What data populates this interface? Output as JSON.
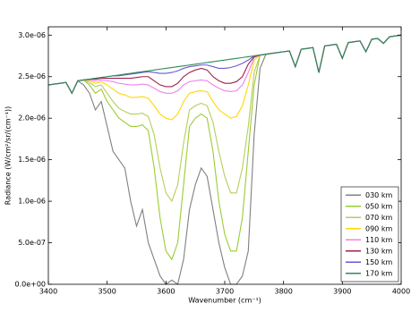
{
  "chart_data": {
    "type": "line",
    "x_label": "Wavenumber (cm⁻¹)",
    "y_label": "Radiance (W/cm²/sr/(cm⁻¹))",
    "x": [
      3400,
      3410,
      3420,
      3430,
      3440,
      3450,
      3460,
      3470,
      3480,
      3490,
      3500,
      3510,
      3520,
      3530,
      3540,
      3550,
      3560,
      3570,
      3580,
      3590,
      3600,
      3610,
      3620,
      3630,
      3640,
      3650,
      3660,
      3670,
      3680,
      3690,
      3700,
      3710,
      3720,
      3730,
      3740,
      3750,
      3760,
      3770,
      3780,
      3790,
      3800,
      3810,
      3820,
      3830,
      3840,
      3850,
      3860,
      3870,
      3880,
      3890,
      3900,
      3910,
      3920,
      3930,
      3940,
      3950,
      3960,
      3970,
      3980,
      3990,
      4000
    ],
    "xlim": [
      3400,
      4000
    ],
    "xticks": [
      3400,
      3500,
      3600,
      3700,
      3800,
      3900,
      4000
    ],
    "ylim": [
      0,
      3.1e-06
    ],
    "yticks": [
      {
        "value": 0,
        "label": "0.0e+00"
      },
      {
        "value": 5e-07,
        "label": "5.0e-07"
      },
      {
        "value": 1e-06,
        "label": "1.0e-06"
      },
      {
        "value": 1.5e-06,
        "label": "1.5e-06"
      },
      {
        "value": 2e-06,
        "label": "2.0e-06"
      },
      {
        "value": 2.5e-06,
        "label": "2.5e-06"
      },
      {
        "value": 3e-06,
        "label": "3.0e-06"
      }
    ],
    "legend": "lower right",
    "series": [
      {
        "name": "030 km",
        "color": "#808080",
        "values": [
          2.4e-06,
          2.41e-06,
          2.42e-06,
          2.43e-06,
          2.3e-06,
          2.45e-06,
          2.4e-06,
          2.3e-06,
          2.1e-06,
          2.2e-06,
          1.9e-06,
          1.6e-06,
          1.5e-06,
          1.4e-06,
          1e-06,
          7e-07,
          9e-07,
          5e-07,
          3e-07,
          1e-07,
          0,
          5e-08,
          0,
          3e-07,
          9e-07,
          1.2e-06,
          1.4e-06,
          1.3e-06,
          9e-07,
          5e-07,
          2e-07,
          0,
          0,
          1e-07,
          4e-07,
          1.8e-06,
          2.6e-06,
          2.77e-06,
          2.78e-06,
          2.79e-06,
          2.8e-06,
          2.81e-06,
          2.62e-06,
          2.83e-06,
          2.84e-06,
          2.85e-06,
          2.55e-06,
          2.87e-06,
          2.88e-06,
          2.89e-06,
          2.72e-06,
          2.91e-06,
          2.92e-06,
          2.93e-06,
          2.8e-06,
          2.95e-06,
          2.96e-06,
          2.9e-06,
          2.98e-06,
          2.99e-06,
          3e-06
        ]
      },
      {
        "name": "050 km",
        "color": "#9acd32",
        "values": [
          2.4e-06,
          2.41e-06,
          2.42e-06,
          2.43e-06,
          2.3e-06,
          2.45e-06,
          2.46e-06,
          2.4e-06,
          2.3e-06,
          2.35e-06,
          2.2e-06,
          2.1e-06,
          2e-06,
          1.95e-06,
          1.9e-06,
          1.9e-06,
          1.92e-06,
          1.85e-06,
          1.4e-06,
          8e-07,
          4e-07,
          3e-07,
          5e-07,
          1.2e-06,
          1.9e-06,
          2e-06,
          2.05e-06,
          2e-06,
          1.6e-06,
          1e-06,
          6e-07,
          4e-07,
          4e-07,
          8e-07,
          1.6e-06,
          2.4e-06,
          2.76e-06,
          2.77e-06,
          2.78e-06,
          2.79e-06,
          2.8e-06,
          2.81e-06,
          2.62e-06,
          2.83e-06,
          2.84e-06,
          2.85e-06,
          2.55e-06,
          2.87e-06,
          2.88e-06,
          2.89e-06,
          2.72e-06,
          2.91e-06,
          2.92e-06,
          2.93e-06,
          2.8e-06,
          2.95e-06,
          2.96e-06,
          2.9e-06,
          2.98e-06,
          2.99e-06,
          3e-06
        ]
      },
      {
        "name": "070 km",
        "color": "#b5cf5a",
        "values": [
          2.4e-06,
          2.41e-06,
          2.42e-06,
          2.43e-06,
          2.3e-06,
          2.45e-06,
          2.46e-06,
          2.43e-06,
          2.38e-06,
          2.4e-06,
          2.3e-06,
          2.2e-06,
          2.12e-06,
          2.08e-06,
          2.05e-06,
          2.05e-06,
          2.06e-06,
          2.02e-06,
          1.8e-06,
          1.4e-06,
          1.1e-06,
          1e-06,
          1.2e-06,
          1.7e-06,
          2.1e-06,
          2.15e-06,
          2.18e-06,
          2.15e-06,
          1.95e-06,
          1.6e-06,
          1.3e-06,
          1.1e-06,
          1.1e-06,
          1.4e-06,
          1.9e-06,
          2.55e-06,
          2.76e-06,
          2.77e-06,
          2.78e-06,
          2.79e-06,
          2.8e-06,
          2.81e-06,
          2.62e-06,
          2.83e-06,
          2.84e-06,
          2.85e-06,
          2.55e-06,
          2.87e-06,
          2.88e-06,
          2.89e-06,
          2.72e-06,
          2.91e-06,
          2.92e-06,
          2.93e-06,
          2.8e-06,
          2.95e-06,
          2.96e-06,
          2.9e-06,
          2.98e-06,
          2.99e-06,
          3e-06
        ]
      },
      {
        "name": "090 km",
        "color": "#ffd700",
        "values": [
          2.4e-06,
          2.41e-06,
          2.42e-06,
          2.43e-06,
          2.3e-06,
          2.45e-06,
          2.46e-06,
          2.45e-06,
          2.42e-06,
          2.44e-06,
          2.4e-06,
          2.35e-06,
          2.3e-06,
          2.28e-06,
          2.25e-06,
          2.25e-06,
          2.26e-06,
          2.24e-06,
          2.15e-06,
          2.05e-06,
          2e-06,
          1.98e-06,
          2.05e-06,
          2.2e-06,
          2.3e-06,
          2.32e-06,
          2.33e-06,
          2.32e-06,
          2.2e-06,
          2.1e-06,
          2.05e-06,
          2e-06,
          2.02e-06,
          2.15e-06,
          2.4e-06,
          2.7e-06,
          2.76e-06,
          2.77e-06,
          2.78e-06,
          2.79e-06,
          2.8e-06,
          2.81e-06,
          2.62e-06,
          2.83e-06,
          2.84e-06,
          2.85e-06,
          2.55e-06,
          2.87e-06,
          2.88e-06,
          2.89e-06,
          2.72e-06,
          2.91e-06,
          2.92e-06,
          2.93e-06,
          2.8e-06,
          2.95e-06,
          2.96e-06,
          2.9e-06,
          2.98e-06,
          2.99e-06,
          3e-06
        ]
      },
      {
        "name": "110 km",
        "color": "#ee82ee",
        "values": [
          2.4e-06,
          2.41e-06,
          2.42e-06,
          2.43e-06,
          2.3e-06,
          2.45e-06,
          2.46e-06,
          2.46e-06,
          2.45e-06,
          2.46e-06,
          2.45e-06,
          2.44e-06,
          2.42e-06,
          2.41e-06,
          2.4e-06,
          2.4e-06,
          2.41e-06,
          2.4e-06,
          2.36e-06,
          2.32e-06,
          2.3e-06,
          2.3e-06,
          2.33e-06,
          2.4e-06,
          2.44e-06,
          2.45e-06,
          2.46e-06,
          2.45e-06,
          2.4e-06,
          2.36e-06,
          2.33e-06,
          2.32e-06,
          2.33e-06,
          2.4e-06,
          2.55e-06,
          2.73e-06,
          2.76e-06,
          2.77e-06,
          2.78e-06,
          2.79e-06,
          2.8e-06,
          2.81e-06,
          2.62e-06,
          2.83e-06,
          2.84e-06,
          2.85e-06,
          2.55e-06,
          2.87e-06,
          2.88e-06,
          2.89e-06,
          2.72e-06,
          2.91e-06,
          2.92e-06,
          2.93e-06,
          2.8e-06,
          2.95e-06,
          2.96e-06,
          2.9e-06,
          2.98e-06,
          2.99e-06,
          3e-06
        ]
      },
      {
        "name": "130 km",
        "color": "#a0204a",
        "values": [
          2.4e-06,
          2.41e-06,
          2.42e-06,
          2.43e-06,
          2.3e-06,
          2.45e-06,
          2.46e-06,
          2.47e-06,
          2.47e-06,
          2.48e-06,
          2.48e-06,
          2.48e-06,
          2.48e-06,
          2.48e-06,
          2.48e-06,
          2.49e-06,
          2.5e-06,
          2.5e-06,
          2.45e-06,
          2.4e-06,
          2.38e-06,
          2.38e-06,
          2.42e-06,
          2.5e-06,
          2.55e-06,
          2.58e-06,
          2.6e-06,
          2.58e-06,
          2.5e-06,
          2.45e-06,
          2.42e-06,
          2.42e-06,
          2.44e-06,
          2.5e-06,
          2.65e-06,
          2.74e-06,
          2.76e-06,
          2.77e-06,
          2.78e-06,
          2.79e-06,
          2.8e-06,
          2.81e-06,
          2.62e-06,
          2.83e-06,
          2.84e-06,
          2.85e-06,
          2.55e-06,
          2.87e-06,
          2.88e-06,
          2.89e-06,
          2.72e-06,
          2.91e-06,
          2.92e-06,
          2.93e-06,
          2.8e-06,
          2.95e-06,
          2.96e-06,
          2.9e-06,
          2.98e-06,
          2.99e-06,
          3e-06
        ]
      },
      {
        "name": "150 km",
        "color": "#6a5acd",
        "values": [
          2.4e-06,
          2.41e-06,
          2.42e-06,
          2.43e-06,
          2.3e-06,
          2.45e-06,
          2.46e-06,
          2.47e-06,
          2.48e-06,
          2.49e-06,
          2.5e-06,
          2.51e-06,
          2.51e-06,
          2.52e-06,
          2.53e-06,
          2.54e-06,
          2.55e-06,
          2.56e-06,
          2.55e-06,
          2.54e-06,
          2.54e-06,
          2.55e-06,
          2.57e-06,
          2.6e-06,
          2.62e-06,
          2.63e-06,
          2.64e-06,
          2.64e-06,
          2.62e-06,
          2.6e-06,
          2.6e-06,
          2.61e-06,
          2.63e-06,
          2.66e-06,
          2.7e-06,
          2.75e-06,
          2.76e-06,
          2.77e-06,
          2.78e-06,
          2.79e-06,
          2.8e-06,
          2.81e-06,
          2.62e-06,
          2.83e-06,
          2.84e-06,
          2.85e-06,
          2.55e-06,
          2.87e-06,
          2.88e-06,
          2.89e-06,
          2.72e-06,
          2.91e-06,
          2.92e-06,
          2.93e-06,
          2.8e-06,
          2.95e-06,
          2.96e-06,
          2.9e-06,
          2.98e-06,
          2.99e-06,
          3e-06
        ]
      },
      {
        "name": "170 km",
        "color": "#2e8b57",
        "values": [
          2.4e-06,
          2.41e-06,
          2.42e-06,
          2.43e-06,
          2.3e-06,
          2.45e-06,
          2.46e-06,
          2.47e-06,
          2.48e-06,
          2.49e-06,
          2.5e-06,
          2.51e-06,
          2.52e-06,
          2.53e-06,
          2.54e-06,
          2.55e-06,
          2.56e-06,
          2.57e-06,
          2.58e-06,
          2.59e-06,
          2.6e-06,
          2.61e-06,
          2.62e-06,
          2.63e-06,
          2.64e-06,
          2.65e-06,
          2.66e-06,
          2.67e-06,
          2.68e-06,
          2.69e-06,
          2.7e-06,
          2.71e-06,
          2.72e-06,
          2.73e-06,
          2.74e-06,
          2.75e-06,
          2.76e-06,
          2.77e-06,
          2.78e-06,
          2.79e-06,
          2.8e-06,
          2.81e-06,
          2.62e-06,
          2.83e-06,
          2.84e-06,
          2.85e-06,
          2.55e-06,
          2.87e-06,
          2.88e-06,
          2.89e-06,
          2.72e-06,
          2.91e-06,
          2.92e-06,
          2.93e-06,
          2.8e-06,
          2.95e-06,
          2.96e-06,
          2.9e-06,
          2.98e-06,
          2.99e-06,
          3e-06
        ]
      }
    ]
  }
}
